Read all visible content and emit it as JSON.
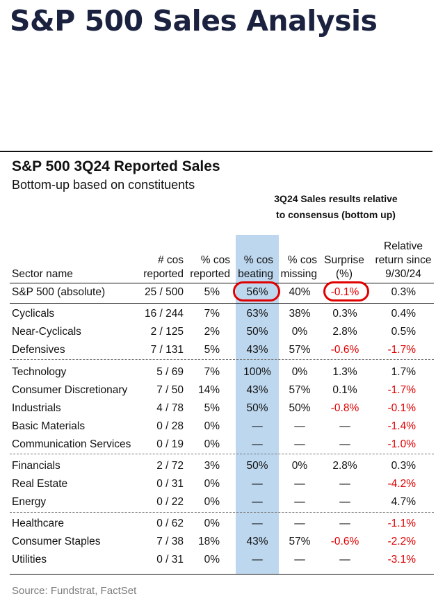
{
  "page_title": "S&P 500 Sales Analysis",
  "table_title": "S&P 500 3Q24 Reported Sales",
  "table_subtitle": "Bottom-up based on constituents",
  "group_header": [
    "3Q24 Sales results relative",
    "to consensus (bottom up)"
  ],
  "columns": {
    "sector": "Sector name",
    "reported_count": [
      "# cos",
      "reported"
    ],
    "reported_pct": [
      "% cos",
      "reported"
    ],
    "beating": [
      "% cos",
      "beating"
    ],
    "missing": [
      "% cos",
      "missing"
    ],
    "surprise": [
      "Surprise",
      "(%)"
    ],
    "relative_return": [
      "Relative",
      "return since",
      "9/30/24"
    ]
  },
  "rows": [
    [
      "S&P 500 (absolute)",
      "25 / 500",
      "5%",
      "56%",
      "40%",
      "-0.1%",
      "0.3%"
    ],
    [
      "Cyclicals",
      "16 / 244",
      "7%",
      "63%",
      "38%",
      "0.3%",
      "0.4%"
    ],
    [
      "Near-Cyclicals",
      "2 / 125",
      "2%",
      "50%",
      "0%",
      "2.8%",
      "0.5%"
    ],
    [
      "Defensives",
      "7 / 131",
      "5%",
      "43%",
      "57%",
      "-0.6%",
      "-1.7%"
    ],
    [
      "Technology",
      "5 / 69",
      "7%",
      "100%",
      "0%",
      "1.3%",
      "1.7%"
    ],
    [
      "Consumer Discretionary",
      "7 / 50",
      "14%",
      "43%",
      "57%",
      "0.1%",
      "-1.7%"
    ],
    [
      "Industrials",
      "4 / 78",
      "5%",
      "50%",
      "50%",
      "-0.8%",
      "-0.1%"
    ],
    [
      "Basic Materials",
      "0 / 28",
      "0%",
      "—",
      "—",
      "—",
      "-1.4%"
    ],
    [
      "Communication Services",
      "0 / 19",
      "0%",
      "—",
      "—",
      "—",
      "-1.0%"
    ],
    [
      "Financials",
      "2 / 72",
      "3%",
      "50%",
      "0%",
      "2.8%",
      "0.3%"
    ],
    [
      "Real Estate",
      "0 / 31",
      "0%",
      "—",
      "—",
      "—",
      "-4.2%"
    ],
    [
      "Energy",
      "0 / 22",
      "0%",
      "—",
      "—",
      "—",
      "4.7%"
    ],
    [
      "Healthcare",
      "0 / 62",
      "0%",
      "—",
      "—",
      "—",
      "-1.1%"
    ],
    [
      "Consumer Staples",
      "7 / 38",
      "18%",
      "43%",
      "57%",
      "-0.6%",
      "-2.2%"
    ],
    [
      "Utilities",
      "0 / 31",
      "0%",
      "—",
      "—",
      "—",
      "-3.1%"
    ]
  ],
  "source": "Source: Fundstrat, FactSet",
  "colors": {
    "title": "#1b2240",
    "highlight": "#bdd7ee",
    "negative": "#e00000",
    "circle": "#e00000"
  }
}
